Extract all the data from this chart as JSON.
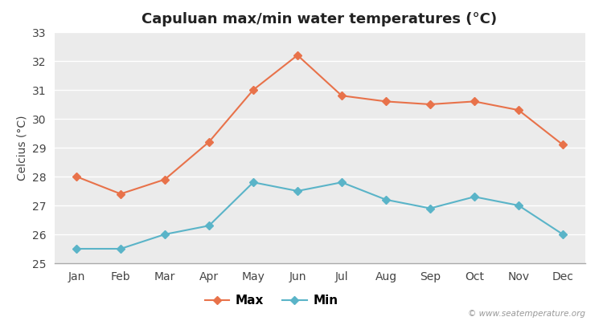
{
  "title": "Capuluan max/min water temperatures (°C)",
  "ylabel": "Celcius (°C)",
  "months": [
    "Jan",
    "Feb",
    "Mar",
    "Apr",
    "May",
    "Jun",
    "Jul",
    "Aug",
    "Sep",
    "Oct",
    "Nov",
    "Dec"
  ],
  "max_temps": [
    28.0,
    27.4,
    27.9,
    29.2,
    31.0,
    32.2,
    30.8,
    30.6,
    30.5,
    30.6,
    30.3,
    29.1
  ],
  "min_temps": [
    25.5,
    25.5,
    26.0,
    26.3,
    27.8,
    27.5,
    27.8,
    27.2,
    26.9,
    27.3,
    27.0,
    26.0
  ],
  "max_color": "#e8724a",
  "min_color": "#5ab4c8",
  "fig_bg_color": "#ffffff",
  "plot_bg_color": "#ebebeb",
  "legend_bg_color": "#ffffff",
  "ylim": [
    25,
    33
  ],
  "yticks": [
    25,
    26,
    27,
    28,
    29,
    30,
    31,
    32,
    33
  ],
  "watermark": "© www.seatemperature.org",
  "legend_labels": [
    "Max",
    "Min"
  ],
  "title_fontsize": 13,
  "axis_label_fontsize": 10,
  "tick_fontsize": 10,
  "legend_fontsize": 11
}
